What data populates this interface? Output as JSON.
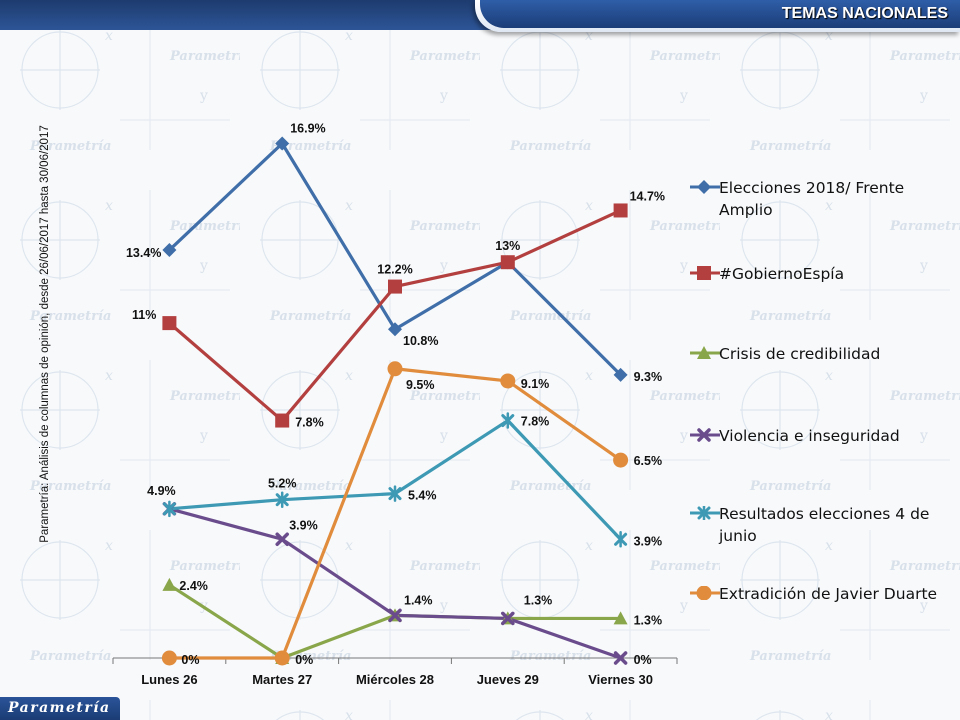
{
  "header": {
    "title": "TEMAS NACIONALES"
  },
  "side_label": "Parametría: Análisis de columnas de opinión, desde 26/06/2017 hasta 30/06/2017",
  "logo": {
    "text": "Parametría"
  },
  "colors": {
    "header_blue": "#1f4380",
    "series": [
      "#3f6ea8",
      "#b3403f",
      "#8aa64a",
      "#6a4c8c",
      "#3d99b4",
      "#e08c3c"
    ]
  },
  "chart_data": {
    "type": "line",
    "categories": [
      "Lunes 26",
      "Martes 27",
      "Miércoles 28",
      "Jueves 29",
      "Viernes 30"
    ],
    "ylim": [
      0,
      18
    ],
    "grid": false,
    "legend_position": "right",
    "series": [
      {
        "name": "Elecciones 2018/ Frente Amplio",
        "marker": "diamond",
        "color": "#3f6ea8",
        "values": [
          13.4,
          16.9,
          10.8,
          13.0,
          9.3
        ],
        "labels": [
          "13.4%",
          "16.9%",
          "10.8%",
          "13%",
          "9.3%"
        ]
      },
      {
        "name": "#GobiernoEspía",
        "marker": "square",
        "color": "#b3403f",
        "values": [
          11.0,
          7.8,
          12.2,
          13.0,
          14.7
        ],
        "labels": [
          "11%",
          "7.8%",
          "12.2%",
          "",
          "14.7%"
        ]
      },
      {
        "name": "Crisis de credibilidad",
        "marker": "triangle",
        "color": "#8aa64a",
        "values": [
          2.4,
          0.0,
          1.4,
          1.3,
          1.3
        ],
        "labels": [
          "2.4%",
          "",
          "",
          "",
          "1.3%"
        ]
      },
      {
        "name": "Violencia e inseguridad",
        "marker": "x",
        "color": "#6a4c8c",
        "values": [
          4.9,
          3.9,
          1.4,
          1.3,
          0.0
        ],
        "labels": [
          "",
          "3.9%",
          "1.4%",
          "1.3%",
          "0%"
        ]
      },
      {
        "name": "Resultados elecciones 4 de junio",
        "marker": "star",
        "color": "#3d99b4",
        "values": [
          4.9,
          5.2,
          5.4,
          7.8,
          3.9
        ],
        "labels": [
          "4.9%",
          "5.2%",
          "5.4%",
          "7.8%",
          "3.9%"
        ]
      },
      {
        "name": "Extradición de Javier Duarte",
        "marker": "circle",
        "color": "#e08c3c",
        "values": [
          0.0,
          0.0,
          9.5,
          9.1,
          6.5
        ],
        "labels": [
          "0%",
          "0%",
          "9.5%",
          "9.1%",
          "6.5%"
        ]
      }
    ]
  }
}
